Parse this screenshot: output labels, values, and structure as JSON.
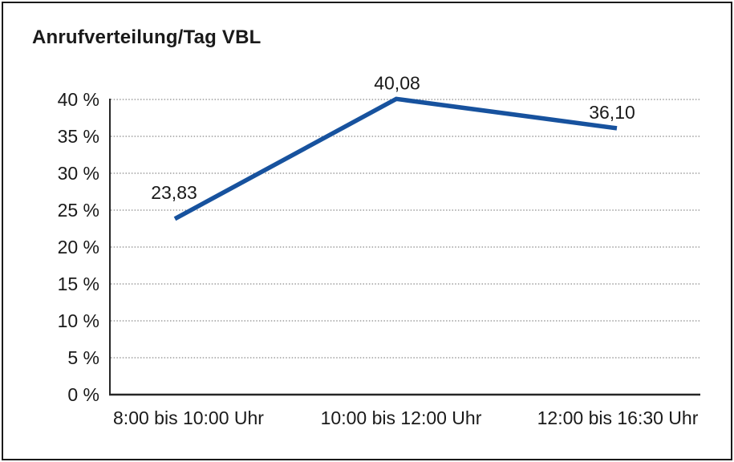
{
  "chart_data": {
    "type": "line",
    "title": "Anrufverteilung/Tag VBL",
    "categories": [
      "8:00 bis 10:00 Uhr",
      "10:00 bis 12:00 Uhr",
      "12:00 bis 16:30 Uhr"
    ],
    "series": [
      {
        "name": "Anrufverteilung/Tag VBL",
        "values": [
          23.83,
          40.08,
          36.1
        ],
        "point_labels": [
          "23,83",
          "40,08",
          "36,10"
        ]
      }
    ],
    "xlabel": "",
    "ylabel": "",
    "ylim": [
      0,
      40
    ],
    "ytick_values": [
      0,
      5,
      10,
      15,
      20,
      25,
      30,
      35,
      40
    ],
    "ytick_labels": [
      "0 %",
      "5 %",
      "10 %",
      "15 %",
      "20 %",
      "25 %",
      "30 %",
      "35 %",
      "40 %"
    ],
    "grid": "horizontal dotted",
    "legend": "none",
    "decimal_separator": ","
  },
  "colors": {
    "line": "#17529E",
    "grid": "#8A8A8A",
    "axis": "#262626",
    "text": "#1A1A1A",
    "frame": "#1A1A1A",
    "background": "#FFFFFF"
  }
}
